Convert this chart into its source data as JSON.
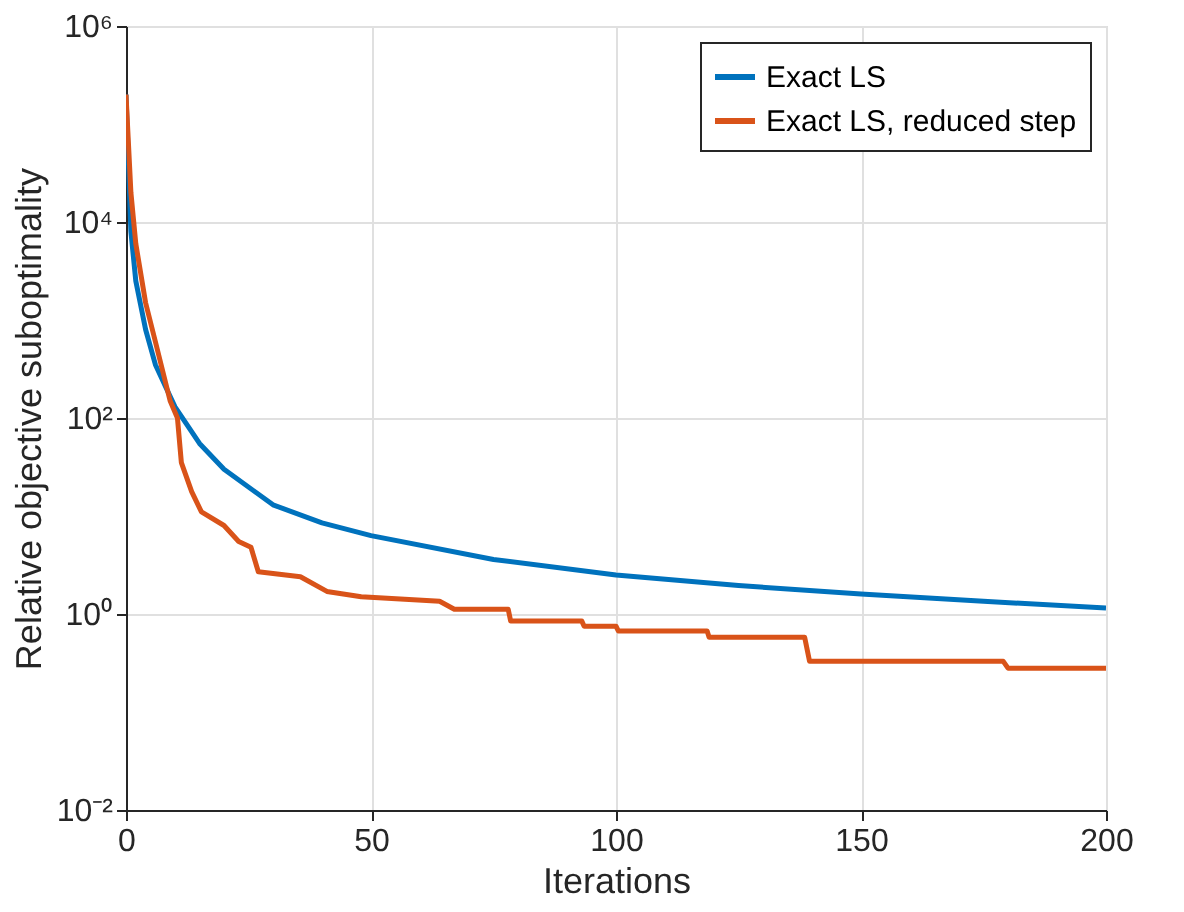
{
  "chart_data": {
    "type": "line",
    "xlabel": "Iterations",
    "ylabel": "Relative objective suboptimality",
    "log": "y",
    "grid": true,
    "legend": "top right",
    "line_style": "solid",
    "marker": "none",
    "xlim": [
      0,
      200
    ],
    "xticks": [
      0,
      50,
      100,
      150,
      200
    ],
    "ylim": [
      0.01,
      1000000
    ],
    "yticks": [
      {
        "value": 0.01,
        "label": "10⁻²"
      },
      {
        "value": 1,
        "label": "10⁰"
      },
      {
        "value": 100,
        "label": "10²"
      },
      {
        "value": 10000,
        "label": "10⁴"
      },
      {
        "value": 1000000,
        "label": "10⁶"
      }
    ],
    "series": [
      {
        "name": "Exact LS",
        "color": "#0072bd",
        "x": [
          0,
          1,
          2,
          4,
          6,
          10,
          15,
          20,
          30,
          40,
          50,
          75,
          100,
          125,
          150,
          175,
          200
        ],
        "values": [
          200000,
          8000,
          2500,
          800,
          350,
          130,
          55,
          30,
          13,
          8.5,
          6.3,
          3.6,
          2.5,
          1.95,
          1.6,
          1.35,
          1.15
        ]
      },
      {
        "name": "Exact LS, reduced step",
        "color": "#d95319",
        "x": [
          0,
          1,
          2,
          4,
          6,
          9,
          10.5,
          11.3,
          13.4,
          15.4,
          20,
          23,
          25.5,
          27,
          35.6,
          41,
          48,
          64,
          67,
          78,
          78.5,
          93,
          93.5,
          100,
          100.5,
          118.6,
          119,
          138.5,
          139.5,
          179,
          180,
          200
        ],
        "values": [
          200000,
          20000,
          6000,
          1500,
          600,
          150,
          100,
          35,
          17.7,
          11,
          8,
          5.5,
          4.8,
          2.7,
          2.4,
          1.7,
          1.5,
          1.35,
          1.12,
          1.12,
          0.85,
          0.85,
          0.75,
          0.75,
          0.67,
          0.67,
          0.58,
          0.58,
          0.33,
          0.33,
          0.28,
          0.28
        ]
      }
    ]
  }
}
